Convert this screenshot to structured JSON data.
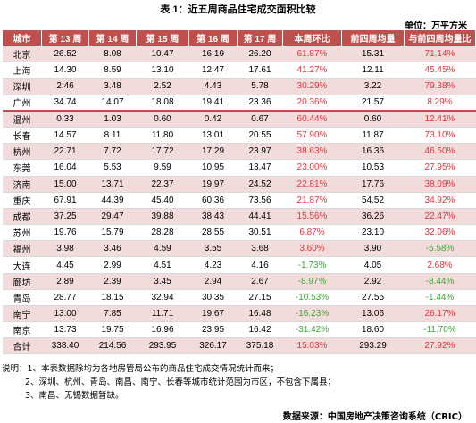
{
  "title": "表 1：近五周商品住宅成交面积比较",
  "unit": "单位：万平方米",
  "columns": [
    "城市",
    "第 13 周",
    "第 14 周",
    "第 15 周",
    "第 16 周",
    "第 17 周",
    "本周环比",
    "前四周均量",
    "与前四周均量比"
  ],
  "rows": [
    {
      "city": "北京",
      "w13": "26.52",
      "w14": "8.08",
      "w15": "10.47",
      "w16": "16.19",
      "w17": "26.20",
      "wow": "61.87%",
      "wow_sign": "pos",
      "avg4": "15.31",
      "vs_avg": "71.14%",
      "vs_sign": "pos"
    },
    {
      "city": "上海",
      "w13": "14.30",
      "w14": "8.59",
      "w15": "13.10",
      "w16": "12.47",
      "w17": "17.61",
      "wow": "41.27%",
      "wow_sign": "pos",
      "avg4": "12.11",
      "vs_avg": "45.45%",
      "vs_sign": "pos"
    },
    {
      "city": "深圳",
      "w13": "2.46",
      "w14": "3.48",
      "w15": "2.52",
      "w16": "4.43",
      "w17": "5.78",
      "wow": "30.29%",
      "wow_sign": "pos",
      "avg4": "3.22",
      "vs_avg": "79.38%",
      "vs_sign": "pos"
    },
    {
      "city": "广州",
      "w13": "34.74",
      "w14": "14.07",
      "w15": "18.08",
      "w16": "19.41",
      "w17": "23.36",
      "wow": "20.36%",
      "wow_sign": "pos",
      "avg4": "21.57",
      "vs_avg": "8.29%",
      "vs_sign": "pos"
    },
    {
      "city": "温州",
      "w13": "0.33",
      "w14": "1.03",
      "w15": "0.60",
      "w16": "0.42",
      "w17": "0.67",
      "wow": "60.44%",
      "wow_sign": "pos",
      "avg4": "0.60",
      "vs_avg": "12.41%",
      "vs_sign": "pos",
      "sep": true
    },
    {
      "city": "长春",
      "w13": "14.57",
      "w14": "8.11",
      "w15": "11.80",
      "w16": "13.01",
      "w17": "20.55",
      "wow": "57.90%",
      "wow_sign": "pos",
      "avg4": "11.87",
      "vs_avg": "73.10%",
      "vs_sign": "pos"
    },
    {
      "city": "杭州",
      "w13": "22.71",
      "w14": "7.72",
      "w15": "17.72",
      "w16": "17.29",
      "w17": "23.97",
      "wow": "38.63%",
      "wow_sign": "pos",
      "avg4": "16.36",
      "vs_avg": "46.50%",
      "vs_sign": "pos"
    },
    {
      "city": "东莞",
      "w13": "16.04",
      "w14": "5.53",
      "w15": "9.59",
      "w16": "10.95",
      "w17": "13.47",
      "wow": "23.00%",
      "wow_sign": "pos",
      "avg4": "10.53",
      "vs_avg": "27.95%",
      "vs_sign": "pos"
    },
    {
      "city": "济南",
      "w13": "15.00",
      "w14": "13.71",
      "w15": "22.37",
      "w16": "19.97",
      "w17": "24.52",
      "wow": "22.81%",
      "wow_sign": "pos",
      "avg4": "17.76",
      "vs_avg": "38.09%",
      "vs_sign": "pos"
    },
    {
      "city": "重庆",
      "w13": "67.91",
      "w14": "44.39",
      "w15": "45.40",
      "w16": "60.36",
      "w17": "73.56",
      "wow": "21.87%",
      "wow_sign": "pos",
      "avg4": "54.52",
      "vs_avg": "34.92%",
      "vs_sign": "pos"
    },
    {
      "city": "成都",
      "w13": "37.25",
      "w14": "29.47",
      "w15": "39.88",
      "w16": "38.43",
      "w17": "44.41",
      "wow": "15.56%",
      "wow_sign": "pos",
      "avg4": "36.26",
      "vs_avg": "22.47%",
      "vs_sign": "pos"
    },
    {
      "city": "苏州",
      "w13": "19.76",
      "w14": "15.79",
      "w15": "28.28",
      "w16": "28.55",
      "w17": "30.51",
      "wow": "6.87%",
      "wow_sign": "pos",
      "avg4": "23.10",
      "vs_avg": "32.06%",
      "vs_sign": "pos"
    },
    {
      "city": "福州",
      "w13": "3.98",
      "w14": "3.46",
      "w15": "4.59",
      "w16": "3.55",
      "w17": "3.68",
      "wow": "3.60%",
      "wow_sign": "pos",
      "avg4": "3.90",
      "vs_avg": "-5.58%",
      "vs_sign": "neg"
    },
    {
      "city": "大连",
      "w13": "4.45",
      "w14": "2.99",
      "w15": "4.51",
      "w16": "4.23",
      "w17": "4.16",
      "wow": "-1.73%",
      "wow_sign": "neg",
      "avg4": "4.05",
      "vs_avg": "2.68%",
      "vs_sign": "pos"
    },
    {
      "city": "廊坊",
      "w13": "2.89",
      "w14": "2.39",
      "w15": "3.45",
      "w16": "2.94",
      "w17": "2.67",
      "wow": "-8.97%",
      "wow_sign": "neg",
      "avg4": "2.92",
      "vs_avg": "-8.44%",
      "vs_sign": "neg"
    },
    {
      "city": "青岛",
      "w13": "28.77",
      "w14": "18.15",
      "w15": "32.94",
      "w16": "30.35",
      "w17": "27.15",
      "wow": "-10.53%",
      "wow_sign": "neg",
      "avg4": "27.55",
      "vs_avg": "-1.44%",
      "vs_sign": "neg"
    },
    {
      "city": "南宁",
      "w13": "13.00",
      "w14": "7.85",
      "w15": "11.71",
      "w16": "19.67",
      "w17": "16.48",
      "wow": "-16.23%",
      "wow_sign": "neg",
      "avg4": "13.06",
      "vs_avg": "26.17%",
      "vs_sign": "pos"
    },
    {
      "city": "南京",
      "w13": "13.73",
      "w14": "19.75",
      "w15": "16.96",
      "w16": "23.95",
      "w17": "16.42",
      "wow": "-31.42%",
      "wow_sign": "neg",
      "avg4": "18.60",
      "vs_avg": "-11.70%",
      "vs_sign": "neg"
    }
  ],
  "total": {
    "city": "合计",
    "w13": "338.40",
    "w14": "214.56",
    "w15": "293.95",
    "w16": "326.17",
    "w17": "375.18",
    "wow": "15.03%",
    "wow_sign": "pos",
    "avg4": "293.29",
    "vs_avg": "27.92%",
    "vs_sign": "pos"
  },
  "notes": [
    "说明：1、本表数据除均为各地房管局公布的商品住宅成交情况统计而来；",
    "2、深圳、杭州、青岛、南昌、南宁、长春等城市统计范围为市区，不包含下属县；",
    "3、南昌、无锡数据暂缺。"
  ],
  "source": "数据来源：中国房地产决策咨询系统（CRIC）"
}
